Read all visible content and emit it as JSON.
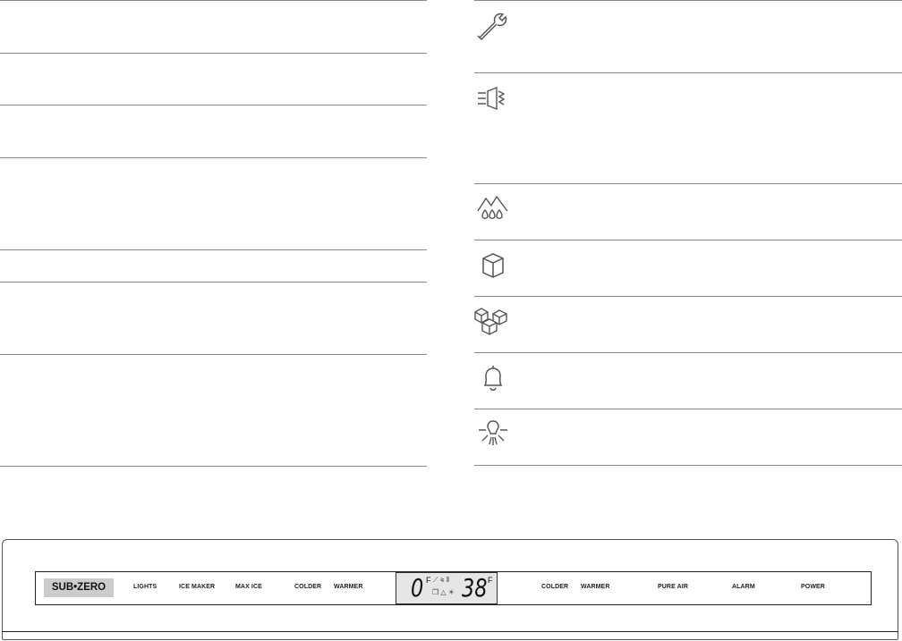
{
  "icons": [
    "wrench-icon",
    "pure-air-icon",
    "water-filter-icon",
    "ice-cube-icon",
    "max-ice-icon",
    "bell-icon",
    "light-bulb-icon"
  ],
  "panel": {
    "brand": "SUB•ZERO",
    "buttons_left": [
      "LIGHTS",
      "ICE MAKER",
      "MAX ICE",
      "COLDER",
      "WARMER"
    ],
    "buttons_right": [
      "COLDER",
      "WARMER",
      "PURE AIR",
      "ALARM",
      "POWER"
    ],
    "display": {
      "freezer_temp": "0",
      "fridge_temp": "38",
      "unit": "F"
    }
  }
}
